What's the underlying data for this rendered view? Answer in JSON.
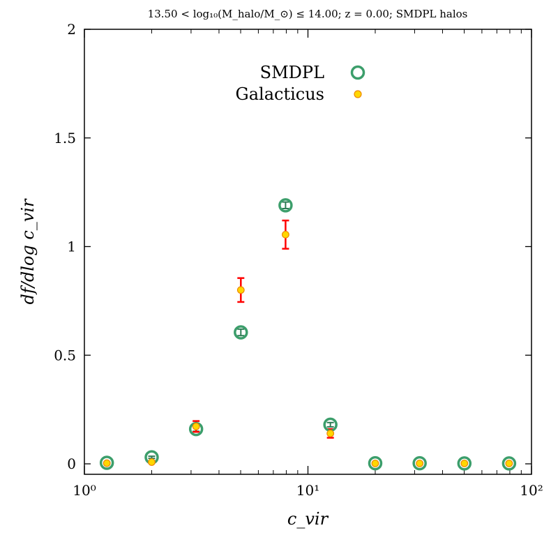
{
  "chart_data": {
    "type": "scatter",
    "title": "13.50 < log₁₀(M_halo/M_⊙) ≤ 14.00; z = 0.00; SMDPL halos",
    "xlabel": "c_vir",
    "ylabel": "df/dlog c_vir",
    "x_scale": "log",
    "xlim": [
      1,
      100
    ],
    "ylim": [
      0,
      2
    ],
    "x_ticks": [
      1,
      10,
      100
    ],
    "x_tick_labels": [
      "10⁰",
      "10¹",
      "10²"
    ],
    "y_ticks": [
      0,
      0.5,
      1,
      1.5,
      2
    ],
    "y_tick_labels": [
      "0",
      "0.5",
      "1",
      "1.5",
      "2"
    ],
    "legend_position": "top-center",
    "series": [
      {
        "name": "SMDPL",
        "marker": "open-circle",
        "color": "#3c9e6b",
        "x": [
          1.26,
          2.0,
          3.16,
          5.01,
          7.94,
          12.6,
          20.0,
          31.6,
          50.1,
          79.4
        ],
        "y": [
          0.005,
          0.03,
          0.16,
          0.605,
          1.19,
          0.18,
          0.003,
          0.003,
          0.002,
          0.002
        ],
        "yerr": [
          0.002,
          0.005,
          0.01,
          0.015,
          0.015,
          0.01,
          0.002,
          0.002,
          0.002,
          0.002
        ]
      },
      {
        "name": "Galacticus",
        "marker": "filled-circle",
        "color": "#ffd700",
        "edge_color": "#ee8800",
        "errorbar_color": "#ff0000",
        "x": [
          1.26,
          2.0,
          3.16,
          5.01,
          7.94,
          12.6,
          20.0,
          31.6,
          50.1,
          79.4
        ],
        "y": [
          0.003,
          0.008,
          0.172,
          0.8,
          1.055,
          0.14,
          0.002,
          0.002,
          0.002,
          0.002
        ],
        "yerr": [
          0.002,
          0.004,
          0.025,
          0.055,
          0.065,
          0.02,
          0.001,
          0.001,
          0.001,
          0.001
        ]
      }
    ]
  }
}
